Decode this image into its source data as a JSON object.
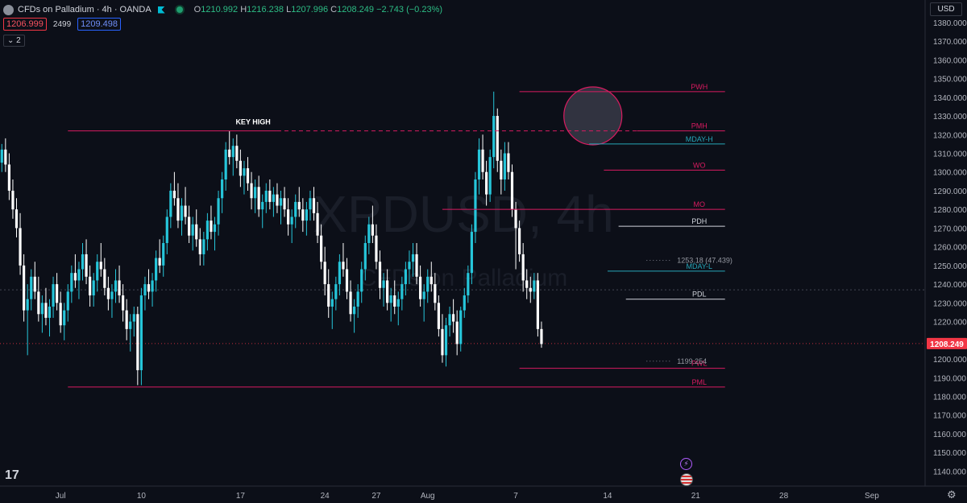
{
  "header": {
    "title": "CFDs on Palladium · 4h · OANDA",
    "o_label": "O",
    "o_value": "1210.992",
    "h_label": "H",
    "h_value": "1216.238",
    "l_label": "L",
    "l_value": "1207.996",
    "c_label": "C",
    "c_value": "1208.249",
    "change": "−2.743 (−0.23%)",
    "bid": "1206.999",
    "spread": "2499",
    "ask": "1209.498",
    "indicators_toggle": "⌄ 2",
    "currency": "USD"
  },
  "colors": {
    "background": "#0c0f18",
    "up": "#26c6da",
    "down": "#ffffff",
    "level_magenta": "#d81b60",
    "level_cyan": "#26a6b8",
    "level_white": "#d1d4dc",
    "price_tag": "#f23645"
  },
  "chart_data": {
    "type": "candlestick",
    "watermark": "XPDUSD, 4h",
    "watermark_sub": "CFDs on Palladium",
    "ylim": [
      1132,
      1392
    ],
    "y_ticks": [
      1140,
      1150,
      1160,
      1170,
      1180,
      1190,
      1200,
      1210,
      1220,
      1230,
      1240,
      1250,
      1260,
      1270,
      1280,
      1290,
      1300,
      1310,
      1320,
      1330,
      1340,
      1350,
      1360,
      1370,
      1380
    ],
    "x_ticks": [
      {
        "label": "Jul",
        "bar": 16
      },
      {
        "label": "10",
        "bar": 38
      },
      {
        "label": "17",
        "bar": 65
      },
      {
        "label": "24",
        "bar": 88
      },
      {
        "label": "27",
        "bar": 102
      },
      {
        "label": "Aug",
        "bar": 116
      },
      {
        "label": "7",
        "bar": 140
      },
      {
        "label": "14",
        "bar": 165
      },
      {
        "label": "21",
        "bar": 189
      },
      {
        "label": "28",
        "bar": 213
      },
      {
        "label": "Sep",
        "bar": 237
      }
    ],
    "bars_visible": 252,
    "last_price": "1208.249",
    "last_price_value": 1208.249,
    "crosshair_price": 1237,
    "levels": [
      {
        "label": "PWH",
        "price": 1343,
        "from": 141,
        "to": 197,
        "color": "magenta",
        "style": "solid"
      },
      {
        "label": "KEY HIGH",
        "price": 1322,
        "from": 18,
        "to": 75,
        "color": "magenta",
        "style": "solid"
      },
      {
        "label": "",
        "price": 1322,
        "from": 75,
        "to": 173,
        "color": "magenta",
        "style": "dashed"
      },
      {
        "label": "PMH",
        "price": 1322,
        "from": 173,
        "to": 197,
        "color": "magenta",
        "style": "solid"
      },
      {
        "label": "MDAY-H",
        "price": 1315,
        "from": 160,
        "to": 197,
        "color": "cyan",
        "style": "solid"
      },
      {
        "label": "WO",
        "price": 1301,
        "from": 164,
        "to": 197,
        "color": "magenta",
        "style": "solid"
      },
      {
        "label": "MO",
        "price": 1280,
        "from": 120,
        "to": 197,
        "color": "magenta",
        "style": "solid"
      },
      {
        "label": "PDH",
        "price": 1271,
        "from": 168,
        "to": 197,
        "color": "white",
        "style": "solid"
      },
      {
        "label": "MDAY-L",
        "price": 1247,
        "from": 165,
        "to": 197,
        "color": "cyan",
        "style": "solid"
      },
      {
        "label": "PDL",
        "price": 1232,
        "from": 170,
        "to": 197,
        "color": "white",
        "style": "solid"
      },
      {
        "label": "PWL",
        "price": 1195,
        "from": 141,
        "to": 197,
        "color": "magenta",
        "style": "solid"
      },
      {
        "label": "PML",
        "price": 1185,
        "from": 18,
        "to": 197,
        "color": "magenta",
        "style": "solid"
      }
    ],
    "annotations": [
      {
        "text": "1253.18 (47.439)",
        "price": 1253.18,
        "bar": 180
      },
      {
        "text": "1199.254",
        "price": 1199.254,
        "bar": 180
      }
    ],
    "circle": {
      "bar": 161,
      "price": 1330
    },
    "candles": [
      [
        1305,
        1315,
        1300,
        1312
      ],
      [
        1312,
        1318,
        1300,
        1304
      ],
      [
        1304,
        1310,
        1285,
        1290
      ],
      [
        1290,
        1296,
        1275,
        1280
      ],
      [
        1280,
        1286,
        1265,
        1270
      ],
      [
        1270,
        1278,
        1245,
        1250
      ],
      [
        1250,
        1256,
        1220,
        1226
      ],
      [
        1226,
        1240,
        1202,
        1232
      ],
      [
        1232,
        1248,
        1226,
        1244
      ],
      [
        1244,
        1252,
        1232,
        1236
      ],
      [
        1236,
        1244,
        1220,
        1224
      ],
      [
        1224,
        1234,
        1214,
        1230
      ],
      [
        1230,
        1238,
        1218,
        1222
      ],
      [
        1222,
        1232,
        1212,
        1228
      ],
      [
        1228,
        1244,
        1222,
        1240
      ],
      [
        1240,
        1246,
        1226,
        1230
      ],
      [
        1230,
        1236,
        1214,
        1218
      ],
      [
        1218,
        1230,
        1210,
        1226
      ],
      [
        1226,
        1240,
        1220,
        1236
      ],
      [
        1236,
        1250,
        1230,
        1246
      ],
      [
        1246,
        1256,
        1238,
        1242
      ],
      [
        1242,
        1252,
        1232,
        1248
      ],
      [
        1248,
        1262,
        1242,
        1256
      ],
      [
        1256,
        1264,
        1240,
        1244
      ],
      [
        1244,
        1250,
        1228,
        1234
      ],
      [
        1234,
        1246,
        1228,
        1242
      ],
      [
        1242,
        1256,
        1236,
        1252
      ],
      [
        1252,
        1262,
        1244,
        1248
      ],
      [
        1248,
        1254,
        1234,
        1238
      ],
      [
        1238,
        1244,
        1226,
        1232
      ],
      [
        1232,
        1240,
        1222,
        1236
      ],
      [
        1236,
        1248,
        1230,
        1242
      ],
      [
        1242,
        1250,
        1230,
        1234
      ],
      [
        1234,
        1240,
        1220,
        1226
      ],
      [
        1226,
        1232,
        1210,
        1216
      ],
      [
        1216,
        1224,
        1204,
        1220
      ],
      [
        1220,
        1228,
        1212,
        1224
      ],
      [
        1224,
        1228,
        1186,
        1194
      ],
      [
        1194,
        1238,
        1186,
        1234
      ],
      [
        1234,
        1244,
        1226,
        1240
      ],
      [
        1240,
        1248,
        1232,
        1236
      ],
      [
        1236,
        1246,
        1228,
        1242
      ],
      [
        1242,
        1258,
        1236,
        1254
      ],
      [
        1254,
        1264,
        1246,
        1250
      ],
      [
        1250,
        1266,
        1244,
        1262
      ],
      [
        1262,
        1280,
        1256,
        1276
      ],
      [
        1276,
        1294,
        1270,
        1290
      ],
      [
        1290,
        1300,
        1282,
        1286
      ],
      [
        1286,
        1294,
        1270,
        1274
      ],
      [
        1274,
        1286,
        1266,
        1282
      ],
      [
        1282,
        1292,
        1272,
        1276
      ],
      [
        1276,
        1282,
        1262,
        1266
      ],
      [
        1266,
        1276,
        1258,
        1272
      ],
      [
        1272,
        1280,
        1260,
        1264
      ],
      [
        1264,
        1270,
        1250,
        1256
      ],
      [
        1256,
        1268,
        1250,
        1264
      ],
      [
        1264,
        1278,
        1258,
        1274
      ],
      [
        1274,
        1282,
        1264,
        1268
      ],
      [
        1268,
        1276,
        1258,
        1272
      ],
      [
        1272,
        1290,
        1266,
        1286
      ],
      [
        1286,
        1300,
        1278,
        1296
      ],
      [
        1296,
        1316,
        1290,
        1312
      ],
      [
        1312,
        1322,
        1304,
        1308
      ],
      [
        1308,
        1318,
        1298,
        1314
      ],
      [
        1314,
        1320,
        1302,
        1306
      ],
      [
        1306,
        1312,
        1292,
        1298
      ],
      [
        1298,
        1306,
        1288,
        1302
      ],
      [
        1302,
        1308,
        1290,
        1294
      ],
      [
        1294,
        1300,
        1280,
        1286
      ],
      [
        1286,
        1296,
        1278,
        1292
      ],
      [
        1292,
        1298,
        1276,
        1280
      ],
      [
        1280,
        1288,
        1270,
        1284
      ],
      [
        1284,
        1294,
        1278,
        1290
      ],
      [
        1290,
        1296,
        1280,
        1284
      ],
      [
        1284,
        1292,
        1276,
        1288
      ],
      [
        1288,
        1294,
        1278,
        1282
      ],
      [
        1282,
        1290,
        1272,
        1286
      ],
      [
        1286,
        1292,
        1276,
        1280
      ],
      [
        1280,
        1286,
        1266,
        1272
      ],
      [
        1272,
        1280,
        1262,
        1276
      ],
      [
        1276,
        1288,
        1270,
        1284
      ],
      [
        1284,
        1292,
        1276,
        1280
      ],
      [
        1280,
        1286,
        1268,
        1274
      ],
      [
        1274,
        1284,
        1266,
        1280
      ],
      [
        1280,
        1290,
        1274,
        1286
      ],
      [
        1286,
        1292,
        1274,
        1278
      ],
      [
        1278,
        1284,
        1262,
        1266
      ],
      [
        1266,
        1272,
        1248,
        1252
      ],
      [
        1252,
        1260,
        1234,
        1240
      ],
      [
        1240,
        1248,
        1222,
        1228
      ],
      [
        1228,
        1236,
        1216,
        1232
      ],
      [
        1232,
        1244,
        1226,
        1240
      ],
      [
        1240,
        1256,
        1234,
        1252
      ],
      [
        1252,
        1262,
        1244,
        1248
      ],
      [
        1248,
        1254,
        1232,
        1236
      ],
      [
        1236,
        1242,
        1220,
        1224
      ],
      [
        1224,
        1232,
        1214,
        1228
      ],
      [
        1228,
        1240,
        1222,
        1236
      ],
      [
        1236,
        1252,
        1230,
        1248
      ],
      [
        1248,
        1266,
        1242,
        1262
      ],
      [
        1262,
        1276,
        1256,
        1272
      ],
      [
        1272,
        1282,
        1262,
        1266
      ],
      [
        1266,
        1272,
        1248,
        1252
      ],
      [
        1252,
        1258,
        1232,
        1238
      ],
      [
        1238,
        1246,
        1228,
        1242
      ],
      [
        1242,
        1248,
        1226,
        1230
      ],
      [
        1230,
        1238,
        1220,
        1234
      ],
      [
        1234,
        1242,
        1224,
        1228
      ],
      [
        1228,
        1236,
        1218,
        1232
      ],
      [
        1232,
        1244,
        1226,
        1240
      ],
      [
        1240,
        1252,
        1234,
        1248
      ],
      [
        1248,
        1258,
        1240,
        1252
      ],
      [
        1252,
        1262,
        1244,
        1256
      ],
      [
        1256,
        1262,
        1240,
        1244
      ],
      [
        1244,
        1250,
        1228,
        1232
      ],
      [
        1232,
        1240,
        1220,
        1236
      ],
      [
        1236,
        1248,
        1230,
        1244
      ],
      [
        1244,
        1252,
        1236,
        1240
      ],
      [
        1240,
        1246,
        1226,
        1230
      ],
      [
        1230,
        1234,
        1212,
        1216
      ],
      [
        1216,
        1224,
        1198,
        1202
      ],
      [
        1202,
        1222,
        1196,
        1218
      ],
      [
        1218,
        1228,
        1212,
        1224
      ],
      [
        1224,
        1232,
        1214,
        1220
      ],
      [
        1220,
        1226,
        1202,
        1208
      ],
      [
        1208,
        1228,
        1204,
        1226
      ],
      [
        1226,
        1238,
        1222,
        1234
      ],
      [
        1234,
        1250,
        1230,
        1246
      ],
      [
        1246,
        1272,
        1240,
        1268
      ],
      [
        1268,
        1300,
        1262,
        1296
      ],
      [
        1296,
        1318,
        1288,
        1312
      ],
      [
        1312,
        1320,
        1296,
        1300
      ],
      [
        1300,
        1306,
        1282,
        1288
      ],
      [
        1288,
        1312,
        1284,
        1308
      ],
      [
        1308,
        1343,
        1302,
        1330
      ],
      [
        1330,
        1334,
        1300,
        1306
      ],
      [
        1306,
        1312,
        1288,
        1296
      ],
      [
        1296,
        1316,
        1290,
        1310
      ],
      [
        1310,
        1316,
        1296,
        1300
      ],
      [
        1300,
        1304,
        1276,
        1280
      ],
      [
        1280,
        1284,
        1248,
        1270
      ],
      [
        1270,
        1274,
        1252,
        1256
      ],
      [
        1256,
        1262,
        1236,
        1242
      ],
      [
        1242,
        1248,
        1232,
        1238
      ],
      [
        1238,
        1244,
        1230,
        1236
      ],
      [
        1236,
        1246,
        1232,
        1242
      ],
      [
        1242,
        1246,
        1212,
        1216
      ],
      [
        1216,
        1220,
        1206,
        1208
      ]
    ]
  }
}
